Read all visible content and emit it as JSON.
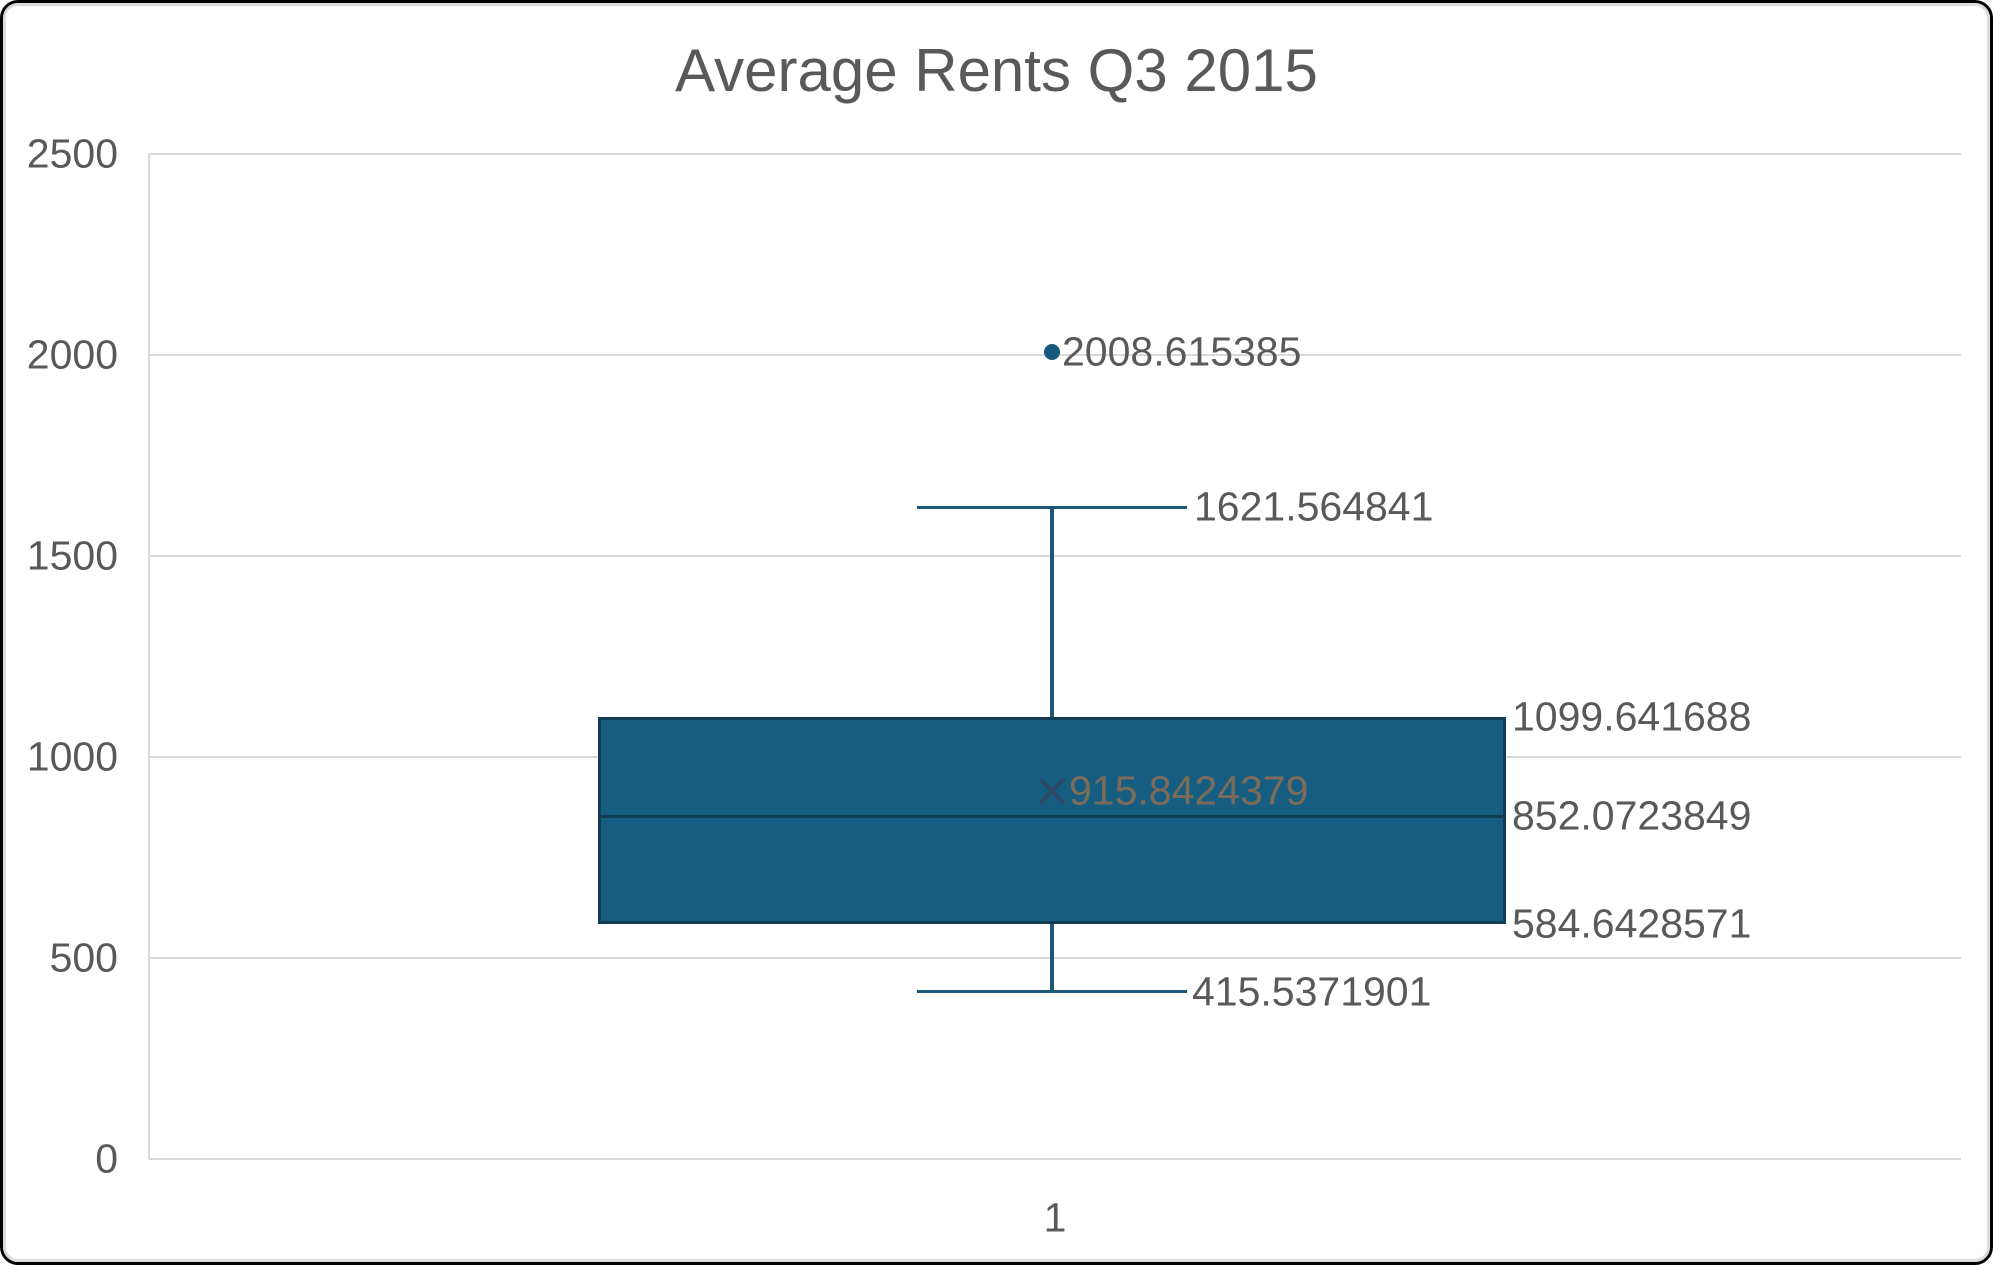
{
  "chart_data": {
    "type": "boxplot",
    "title": "Average Rents Q3 2015",
    "xlabel": "",
    "ylabel": "",
    "grid": true,
    "legend": "none",
    "x_axis": {
      "categories": [
        "1"
      ]
    },
    "y_axis": {
      "min": 0,
      "max": 2500,
      "step": 500,
      "tick_labels": [
        "0",
        "500",
        "1000",
        "1500",
        "2000",
        "2500"
      ]
    },
    "series": [
      {
        "category": "1",
        "whisker_low": 415.5371901,
        "q1": 584.6428571,
        "median": 852.0723849,
        "q3": 1099.641688,
        "whisker_high": 1621.564841,
        "mean": 915.8424379,
        "outliers": [
          2008.615385
        ]
      }
    ],
    "data_labels": {
      "outlier": "2008.615385",
      "whisker_high": "1621.564841",
      "q3": "1099.641688",
      "median": "852.0723849",
      "q1": "584.6428571",
      "whisker_low": "415.5371901",
      "mean": "915.8424379"
    },
    "colors": {
      "box_fill": "#155e82",
      "box_border": "#123c55",
      "whisker": "#1b587a",
      "outlier": "#15597c",
      "mean_marker": "#2c4a63",
      "gridline": "#d9d9d9",
      "label": "#595959",
      "mean_label": "#7d6b5a",
      "title": "#595959",
      "frame_border": "#000000",
      "chart_border": "#dcdcdc"
    }
  }
}
